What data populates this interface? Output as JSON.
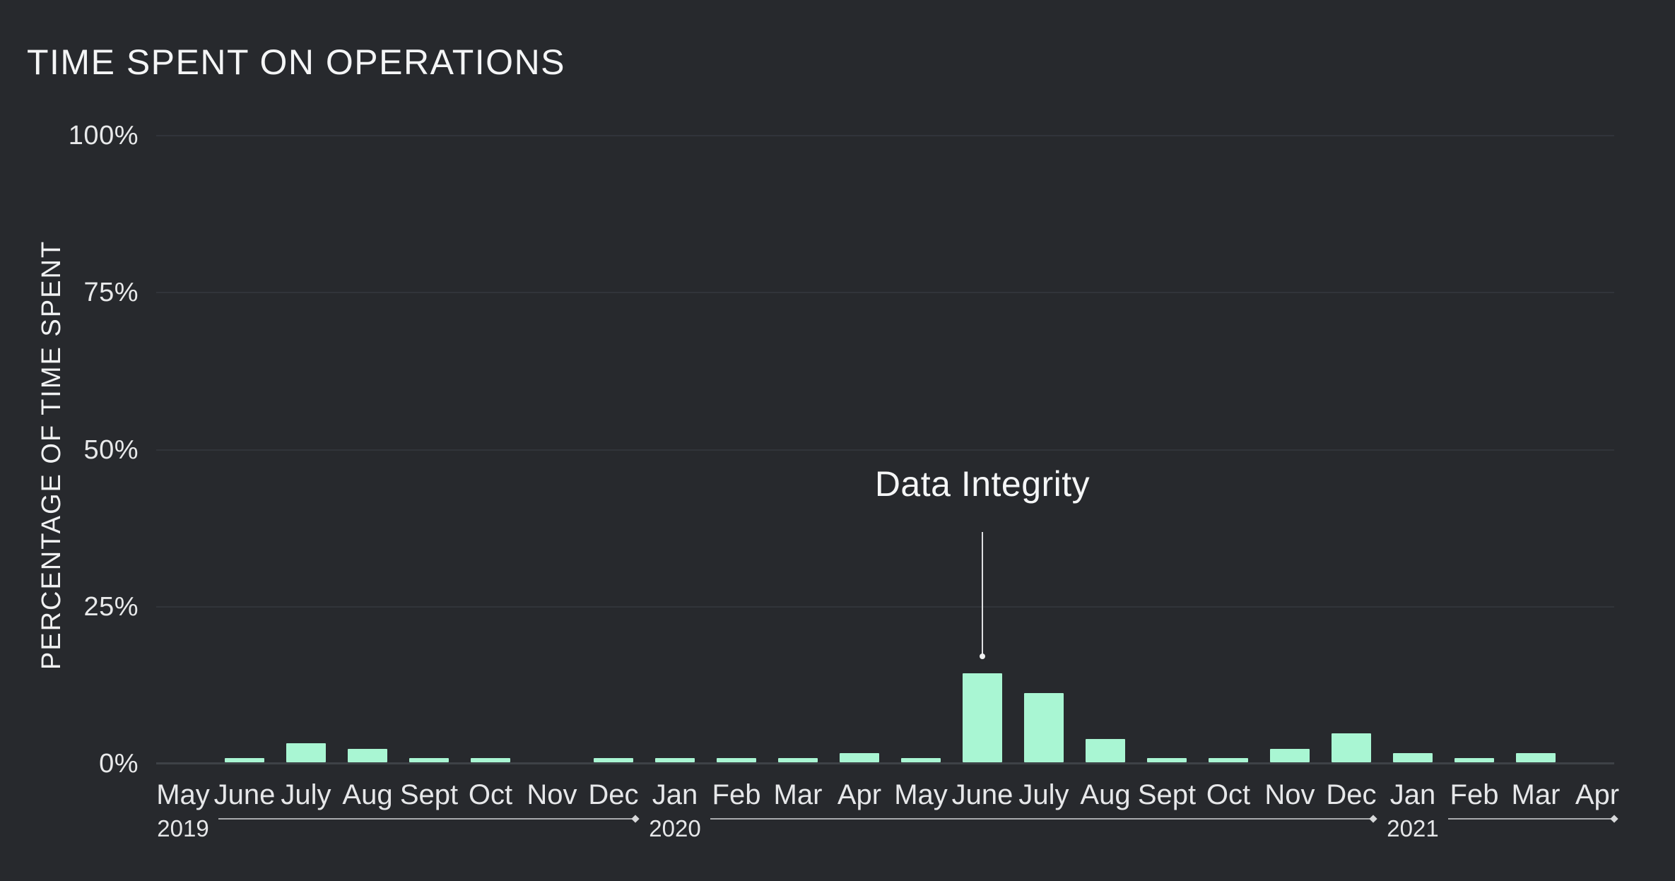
{
  "title": "TIME SPENT ON OPERATIONS",
  "colors": {
    "background": "#27292D",
    "bar": "#A9F6D3",
    "gridline": "#31343A",
    "axis_baseline": "#3E4247",
    "text": "#F4F5F6",
    "tick_text": "#E8E9EA",
    "ruler_line": "#A9ABAE"
  },
  "chart_data": {
    "type": "bar",
    "title": "TIME SPENT ON OPERATIONS",
    "xlabel": "",
    "ylabel": "PERCENTAGE OF TIME SPENT",
    "ylim": [
      0,
      100
    ],
    "grid": "horizontal",
    "legend": "none",
    "yticks": [
      {
        "label": "100%",
        "value": 100
      },
      {
        "label": "75%",
        "value": 75
      },
      {
        "label": "50%",
        "value": 50
      },
      {
        "label": "25%",
        "value": 25
      },
      {
        "label": "0%",
        "value": 0
      }
    ],
    "categories": [
      "May",
      "June",
      "July",
      "Aug",
      "Sept",
      "Oct",
      "Nov",
      "Dec",
      "Jan",
      "Feb",
      "Mar",
      "Apr",
      "May",
      "June",
      "July",
      "Aug",
      "Sept",
      "Oct",
      "Nov",
      "Dec",
      "Jan",
      "Feb",
      "Mar",
      "Apr"
    ],
    "values": [
      0,
      0.7,
      3,
      2.1,
      0.7,
      0.7,
      0,
      0.7,
      0.7,
      0.7,
      0.7,
      1.5,
      0.7,
      14.2,
      11,
      3.7,
      0.7,
      0.7,
      2.1,
      4.6,
      1.5,
      0.7,
      1.5,
      0
    ],
    "year_groups": [
      {
        "label": "2019",
        "start_index": 0
      },
      {
        "label": "2020",
        "start_index": 8
      },
      {
        "label": "2021",
        "start_index": 20
      }
    ],
    "annotation": {
      "label": "Data Integrity",
      "category": "June",
      "year": "2020",
      "category_index": 13,
      "value": 14.2
    }
  }
}
